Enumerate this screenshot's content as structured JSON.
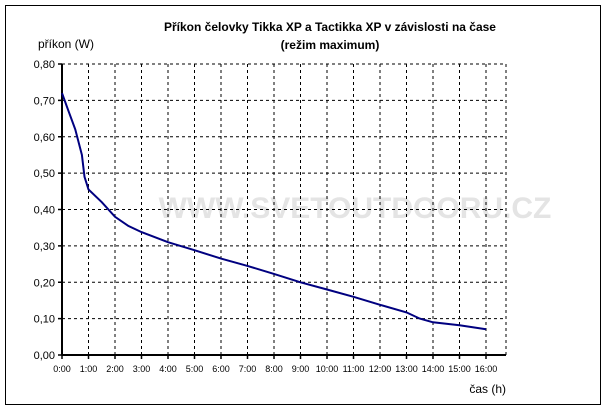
{
  "chart_data": {
    "type": "line",
    "title": "Příkon čelovky Tikka XP a Tactikka XP v závislosti na čase",
    "subtitle": "(režim maximum)",
    "xlabel": "čas (h)",
    "ylabel": "příkon (W)",
    "watermark": "WWW.SVETOUTDOORU.CZ",
    "xlim": [
      0,
      16.75
    ],
    "ylim": [
      0,
      0.8
    ],
    "grid": true,
    "x_ticks": [
      0,
      1,
      2,
      3,
      4,
      5,
      6,
      7,
      8,
      9,
      10,
      11,
      12,
      13,
      14,
      15,
      16
    ],
    "x_tick_labels": [
      "0:00",
      "1:00",
      "2:00",
      "3:00",
      "4:00",
      "5:00",
      "6:00",
      "7:00",
      "8:00",
      "9:00",
      "10:00",
      "11:00",
      "12:00",
      "13:00",
      "14:00",
      "15:00",
      "16:00"
    ],
    "y_ticks": [
      0,
      0.1,
      0.2,
      0.3,
      0.4,
      0.5,
      0.6,
      0.7,
      0.8
    ],
    "y_tick_labels": [
      "0,00",
      "0,10",
      "0,20",
      "0,30",
      "0,40",
      "0,50",
      "0,60",
      "0,70",
      "0,80"
    ],
    "series": [
      {
        "name": "příkon",
        "color": "#000080",
        "x": [
          0,
          0.25,
          0.5,
          0.75,
          0.85,
          1.0,
          1.5,
          2.0,
          2.5,
          3.0,
          4.0,
          5.0,
          6.0,
          7.0,
          8.0,
          9.0,
          10.0,
          11.0,
          12.0,
          13.0,
          13.5,
          14.0,
          15.0,
          16.0
        ],
        "y": [
          0.72,
          0.67,
          0.62,
          0.55,
          0.49,
          0.455,
          0.42,
          0.38,
          0.355,
          0.338,
          0.31,
          0.288,
          0.265,
          0.245,
          0.223,
          0.2,
          0.18,
          0.16,
          0.138,
          0.117,
          0.1,
          0.09,
          0.082,
          0.071
        ]
      }
    ]
  }
}
